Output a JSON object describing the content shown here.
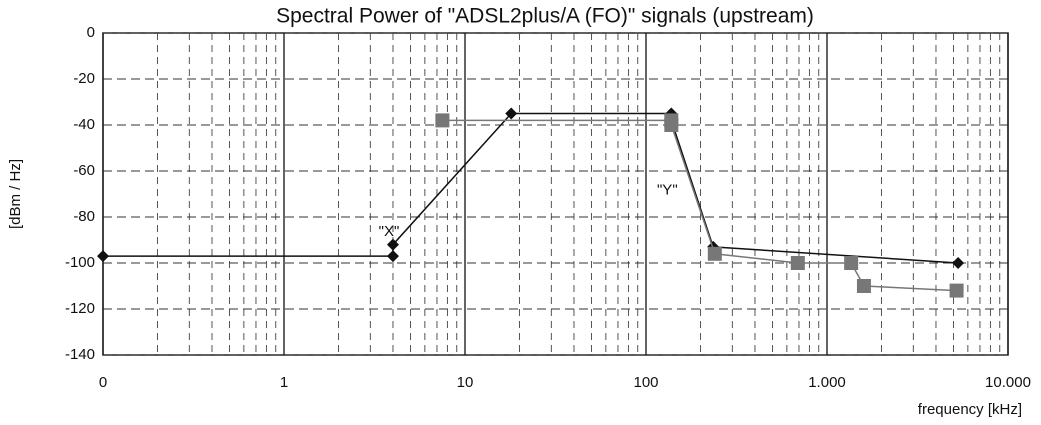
{
  "chart_data": {
    "type": "line",
    "title": "Spectral Power of \"ADSL2plus/A (FO)\" signals (upstream)",
    "xlabel": "frequency [kHz]",
    "ylabel": "[dBm / Hz]",
    "xscale": "log",
    "grid": true,
    "xlim": [
      0.1,
      10000
    ],
    "xticks": [
      {
        "value": 0.1,
        "label": "0"
      },
      1,
      10,
      100,
      {
        "value": 1000,
        "label": "1.000"
      },
      {
        "value": 10000,
        "label": "10.000"
      }
    ],
    "ylim": [
      -140,
      0
    ],
    "yticks": [
      0,
      -20,
      -40,
      -60,
      -80,
      -100,
      -120,
      -140
    ],
    "series": [
      {
        "name": "\"X\"",
        "color": "#111111",
        "marker": "diamond",
        "x": [
          0.1,
          4,
          4,
          18,
          138,
          138,
          235,
          5300
        ],
        "values": [
          -97,
          -97,
          -92,
          -35,
          -35,
          -38,
          -93,
          -100
        ]
      },
      {
        "name": "\"Y\"",
        "color": "#777777",
        "marker": "square",
        "x": [
          7.5,
          138,
          138,
          240,
          690,
          1360,
          1600,
          5200
        ],
        "values": [
          -38,
          -38,
          -40,
          -96,
          -100,
          -100,
          -110,
          -112
        ]
      }
    ]
  }
}
